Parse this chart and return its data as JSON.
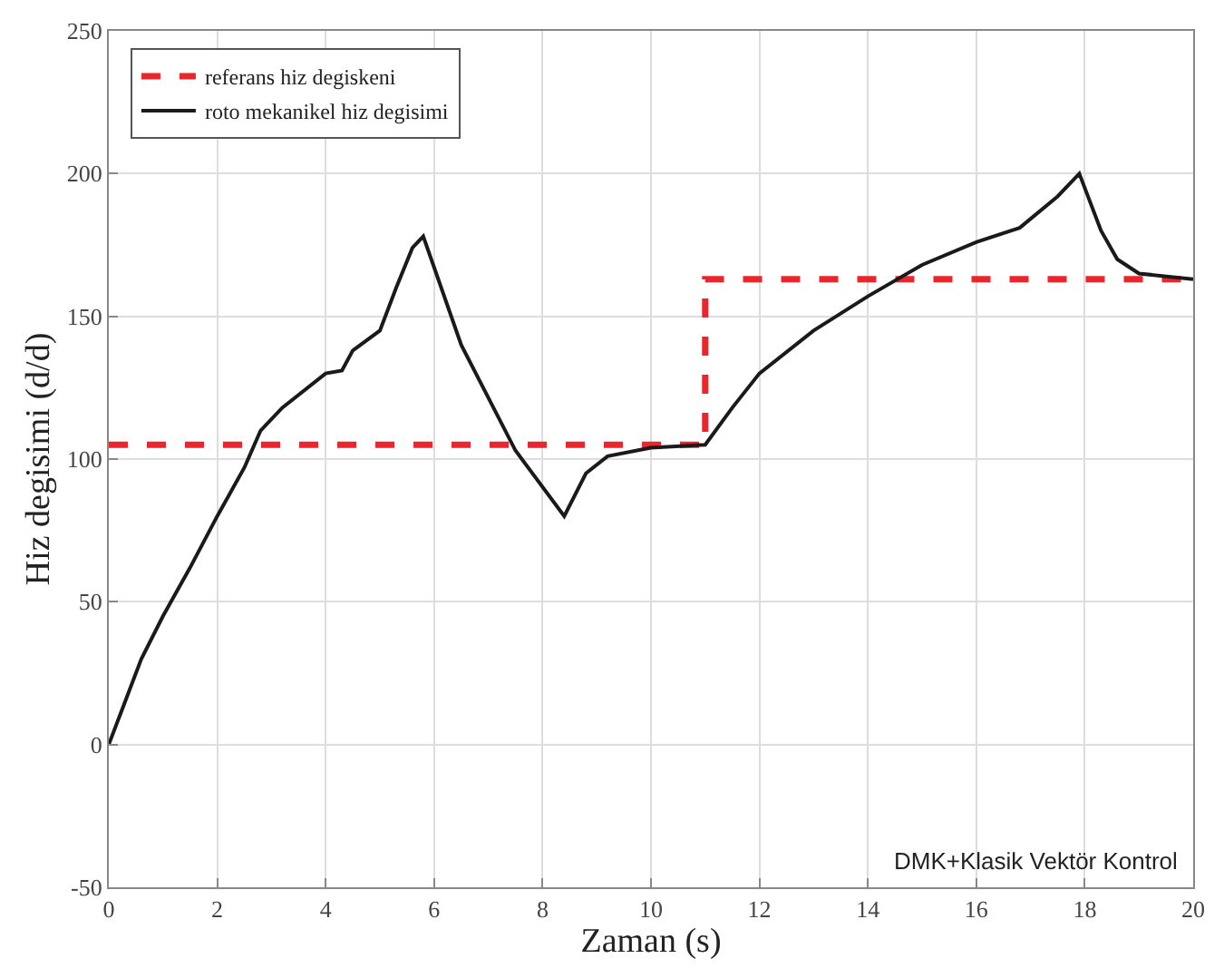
{
  "chart_data": {
    "type": "line",
    "xlabel": "Zaman (s)",
    "ylabel": "Hiz degisimi (d/d)",
    "annotations": [
      "DMK+Klasik Vektör Kontrol"
    ],
    "series": [
      {
        "name": "referans hiz degiskeni",
        "color": "#e8262c",
        "line_style": "dashed",
        "type": "step",
        "x": [
          0,
          11,
          20
        ],
        "values": [
          105,
          163,
          163
        ]
      },
      {
        "name": "roto mekanikel hiz degisimi",
        "color": "#1a1a1a",
        "line_style": "solid",
        "x": [
          0,
          0.3,
          0.6,
          1,
          1.5,
          2,
          2.5,
          2.8,
          3.2,
          4,
          4.3,
          4.5,
          5,
          5.3,
          5.6,
          5.8,
          6.5,
          7.5,
          8.4,
          8.8,
          9.2,
          10,
          11,
          11.5,
          12,
          13,
          14,
          15,
          16,
          16.8,
          17.5,
          17.9,
          18.3,
          18.6,
          19,
          20
        ],
        "values": [
          0,
          15,
          30,
          45,
          62,
          80,
          97,
          110,
          118,
          130,
          131,
          138,
          145,
          160,
          174,
          178,
          140,
          103,
          80,
          95,
          101,
          104,
          105,
          118,
          130,
          145,
          157,
          168,
          176,
          181,
          192,
          200,
          180,
          170,
          165,
          163
        ]
      }
    ],
    "xlim": [
      0,
      20
    ],
    "xticks": [
      0,
      2,
      4,
      6,
      8,
      10,
      12,
      14,
      16,
      18,
      20
    ],
    "ylim": [
      -50,
      250
    ],
    "yticks": [
      -50,
      0,
      50,
      100,
      150,
      200,
      250
    ],
    "grid": true,
    "legend": "top left",
    "marker": "none"
  }
}
